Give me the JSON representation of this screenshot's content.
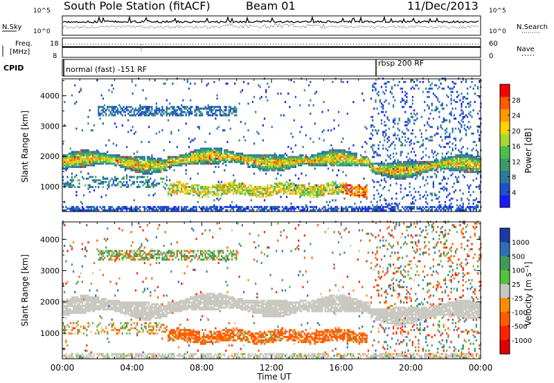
{
  "header": {
    "station": "South Pole Station (fitACF)",
    "beam": "Beam 01",
    "date": "11/Dec/2013"
  },
  "strips": {
    "nsky_label": "N.Sky",
    "nsky_top": "10^5",
    "nsky_bottom": "10^0",
    "nsearch_label": "N.Search",
    "nsearch_top": "10^5",
    "nsearch_bottom": "10^0",
    "freq_label": "Freq.",
    "freq_unit": "[MHz]",
    "freq_top": "18",
    "freq_bottom": "8",
    "nave_label": "Nave",
    "nave_top": "60",
    "nave_bottom": "0",
    "cpid_label": "CPID",
    "cpid_programs": [
      {
        "name": "normal (fast) -151 RF",
        "start_hour": 0
      },
      {
        "name": "rbsp 200 RF",
        "start_hour": 18
      }
    ]
  },
  "chart_data": [
    {
      "type": "heatmap",
      "parameter": "power",
      "ylabel": "Slant Range [km]",
      "xlabel": "Time UT",
      "ylim": [
        180,
        4560
      ],
      "xlim_hours": [
        0,
        24
      ],
      "yticks": [
        "1000",
        "2000",
        "3000",
        "4000"
      ],
      "colorbar": {
        "label": "Power [dB]",
        "range": [
          0,
          32
        ],
        "ticks": [
          "4",
          "8",
          "12",
          "16",
          "20",
          "24",
          "28"
        ],
        "colors": [
          "#1a1aff",
          "#1e50c8",
          "#2a7a9c",
          "#3b9a6a",
          "#4cc04c",
          "#a8d838",
          "#ffd200",
          "#ff9900",
          "#ff5a00",
          "#ff0000"
        ]
      },
      "echo_bands": [
        {
          "description": "main band",
          "hours": [
            0,
            24
          ],
          "range_km": [
            1550,
            2100
          ],
          "peak_power_db": 26
        },
        {
          "description": "lower band",
          "hours": [
            6,
            17.5
          ],
          "range_km": [
            700,
            1150
          ],
          "peak_power_db": 30
        },
        {
          "description": "upper scatter",
          "hours": [
            2,
            10
          ],
          "range_km": [
            3300,
            3600
          ],
          "peak_power_db": 10
        }
      ]
    },
    {
      "type": "heatmap",
      "parameter": "velocity",
      "ylabel": "Slant Range [km]",
      "xlabel": "Time UT",
      "ylim": [
        180,
        4560
      ],
      "xlim_hours": [
        0,
        24
      ],
      "yticks": [
        "1000",
        "2000",
        "3000",
        "4000"
      ],
      "colorbar": {
        "label": "Velocity [m s⁻¹]",
        "ticks": [
          "1000",
          "500",
          "100",
          "25",
          "-25",
          "-100",
          "-500",
          "-1000"
        ],
        "colors": [
          "#1a3aa8",
          "#2e6fb8",
          "#3f9a5a",
          "#55c23c",
          "#c8c8c0",
          "#ff8c00",
          "#ff5a00",
          "#ff2000",
          "#e00000"
        ]
      },
      "echo_bands": [
        {
          "description": "main band",
          "hours": [
            0,
            24
          ],
          "range_km": [
            1500,
            2150
          ],
          "velocity_ms": 0
        },
        {
          "description": "lower band",
          "hours": [
            6,
            17.5
          ],
          "range_km": [
            700,
            1150
          ],
          "velocity_ms": -200
        }
      ]
    }
  ],
  "x_axis": {
    "ticks": [
      "00:00",
      "04:00",
      "08:00",
      "12:00",
      "16:00",
      "20:00",
      "00:00"
    ],
    "label": "Time UT"
  }
}
